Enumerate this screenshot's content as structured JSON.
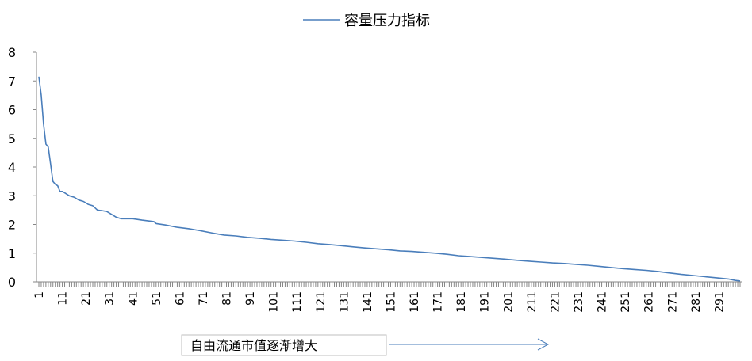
{
  "chart_data": {
    "type": "line",
    "title": "",
    "xlabel": "",
    "ylabel": "",
    "ylim": [
      0,
      8
    ],
    "yticks": [
      0,
      1,
      2,
      3,
      4,
      5,
      6,
      7,
      8
    ],
    "xlim": [
      1,
      300
    ],
    "xtick_labels": [
      "1",
      "11",
      "21",
      "31",
      "41",
      "51",
      "61",
      "71",
      "81",
      "91",
      "101",
      "111",
      "121",
      "131",
      "141",
      "151",
      "161",
      "171",
      "181",
      "191",
      "201",
      "211",
      "221",
      "231",
      "241",
      "251",
      "261",
      "271",
      "281",
      "291"
    ],
    "grid": false,
    "legend": {
      "position": "top-center",
      "entries": [
        "容量压力指标"
      ]
    },
    "series": [
      {
        "name": "容量压力指标",
        "color": "#4a7ebb",
        "x": [
          1,
          2,
          3,
          4,
          5,
          6,
          7,
          8,
          9,
          10,
          11,
          12,
          14,
          16,
          18,
          20,
          22,
          24,
          26,
          28,
          30,
          32,
          34,
          36,
          38,
          41,
          45,
          50,
          51,
          55,
          60,
          65,
          70,
          75,
          80,
          85,
          90,
          95,
          100,
          105,
          110,
          115,
          120,
          125,
          130,
          135,
          140,
          145,
          150,
          155,
          160,
          165,
          170,
          175,
          180,
          185,
          190,
          195,
          200,
          205,
          210,
          215,
          220,
          225,
          230,
          235,
          240,
          245,
          250,
          255,
          260,
          265,
          270,
          275,
          280,
          285,
          290,
          295,
          298,
          300
        ],
        "values": [
          7.15,
          6.5,
          5.5,
          4.8,
          4.7,
          4.1,
          3.5,
          3.4,
          3.35,
          3.15,
          3.15,
          3.1,
          3.0,
          2.95,
          2.85,
          2.8,
          2.7,
          2.65,
          2.5,
          2.48,
          2.45,
          2.35,
          2.25,
          2.2,
          2.2,
          2.2,
          2.15,
          2.1,
          2.03,
          1.98,
          1.9,
          1.85,
          1.78,
          1.7,
          1.63,
          1.6,
          1.55,
          1.52,
          1.48,
          1.45,
          1.42,
          1.38,
          1.33,
          1.3,
          1.26,
          1.22,
          1.18,
          1.15,
          1.12,
          1.08,
          1.06,
          1.03,
          1.0,
          0.96,
          0.91,
          0.88,
          0.85,
          0.82,
          0.79,
          0.75,
          0.72,
          0.69,
          0.66,
          0.64,
          0.61,
          0.58,
          0.54,
          0.5,
          0.46,
          0.43,
          0.4,
          0.36,
          0.31,
          0.26,
          0.22,
          0.18,
          0.14,
          0.1,
          0.05,
          0.03
        ]
      }
    ],
    "annotation": {
      "text": "自由流通市值逐渐增大",
      "arrow": "right"
    }
  }
}
